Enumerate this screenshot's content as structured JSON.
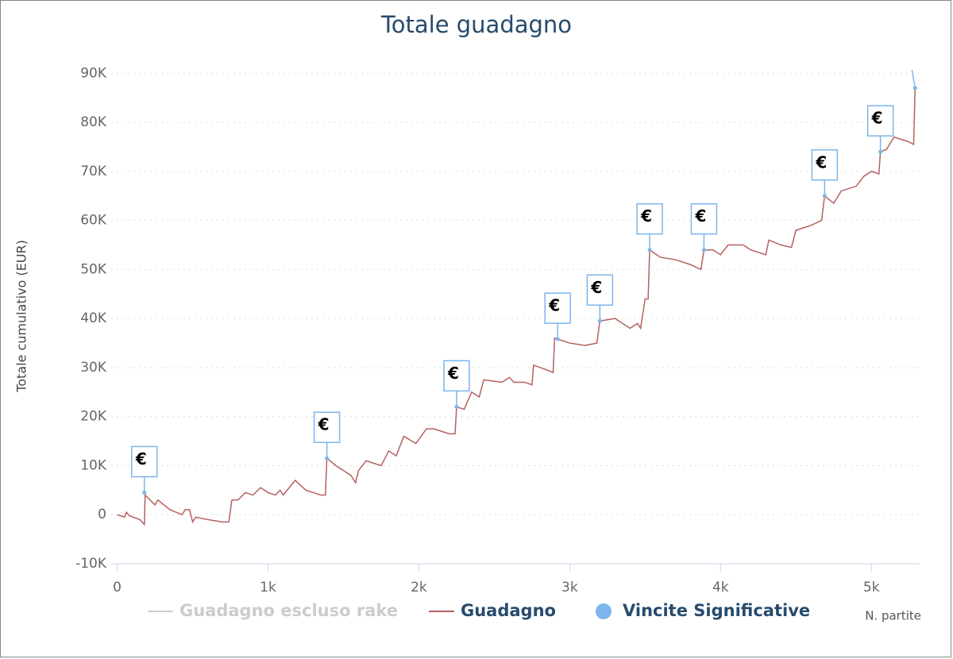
{
  "chart_data": {
    "type": "line",
    "title": "Totale guadagno",
    "y_label": "Totale cumulativo (EUR)",
    "x_label": "N. partite",
    "xlim": [
      -40,
      5320
    ],
    "ylim": [
      -10000,
      92000
    ],
    "xticks": [
      0,
      {
        "value": 1000,
        "label": "1k"
      },
      {
        "value": 2000,
        "label": "2k"
      },
      {
        "value": 3000,
        "label": "3k"
      },
      {
        "value": 4000,
        "label": "4k"
      },
      {
        "value": 5000,
        "label": "5k"
      }
    ],
    "yticks": [
      {
        "value": -10000,
        "label": "-10K"
      },
      0,
      {
        "value": 10000,
        "label": "10K"
      },
      {
        "value": 20000,
        "label": "20K"
      },
      {
        "value": 30000,
        "label": "30K"
      },
      {
        "value": 40000,
        "label": "40K"
      },
      {
        "value": 50000,
        "label": "50K"
      },
      {
        "value": 60000,
        "label": "60K"
      },
      {
        "value": 70000,
        "label": "70K"
      },
      {
        "value": 80000,
        "label": "80K"
      },
      {
        "value": 90000,
        "label": "90K"
      }
    ],
    "grid": true,
    "flag_text": "€",
    "series": [
      {
        "name": "Guadagno escluso rake",
        "color": "#cccccc",
        "hidden": true
      },
      {
        "name": "Guadagno",
        "color": "#b5615f",
        "x": [
          0,
          50,
          60,
          80,
          150,
          180,
          185,
          250,
          270,
          350,
          430,
          450,
          480,
          500,
          520,
          600,
          700,
          740,
          760,
          800,
          850,
          900,
          950,
          1000,
          1050,
          1080,
          1100,
          1180,
          1250,
          1350,
          1380,
          1390,
          1450,
          1500,
          1550,
          1580,
          1600,
          1650,
          1750,
          1800,
          1850,
          1900,
          1980,
          2050,
          2100,
          2200,
          2240,
          2250,
          2300,
          2350,
          2400,
          2430,
          2550,
          2600,
          2630,
          2700,
          2750,
          2760,
          2850,
          2890,
          2900,
          3000,
          3100,
          3180,
          3200,
          3300,
          3350,
          3400,
          3450,
          3470,
          3500,
          3520,
          3530,
          3600,
          3700,
          3800,
          3870,
          3890,
          3950,
          4000,
          4050,
          4150,
          4200,
          4300,
          4320,
          4400,
          4470,
          4500,
          4600,
          4670,
          4690,
          4750,
          4800,
          4900,
          4950,
          5000,
          5050,
          5060,
          5100,
          5150,
          5250,
          5280,
          5290
        ],
        "values": [
          0,
          -500,
          500,
          -200,
          -1000,
          -2000,
          4000,
          2000,
          3000,
          1000,
          0,
          1000,
          1000,
          -1500,
          -500,
          -1000,
          -1500,
          -1500,
          3000,
          3000,
          4500,
          4000,
          5500,
          4500,
          4000,
          5000,
          4000,
          7000,
          5000,
          4000,
          4000,
          11500,
          10000,
          9000,
          8000,
          6500,
          9000,
          11000,
          10000,
          13000,
          12000,
          16000,
          14500,
          17500,
          17500,
          16500,
          16500,
          22000,
          21500,
          25000,
          24000,
          27500,
          27000,
          28000,
          27000,
          27000,
          26500,
          30500,
          29500,
          29000,
          36000,
          35000,
          34500,
          35000,
          39500,
          40000,
          39000,
          38000,
          39000,
          38000,
          44000,
          44000,
          54000,
          52500,
          52000,
          51000,
          50000,
          54000,
          54000,
          53000,
          55000,
          55000,
          54000,
          53000,
          56000,
          55000,
          54500,
          58000,
          59000,
          60000,
          65000,
          63500,
          66000,
          67000,
          69000,
          70000,
          69500,
          74000,
          74500,
          77000,
          76000,
          75500,
          87000
        ]
      },
      {
        "name": "Vincite Significative",
        "color": "#7cb5ec",
        "x": [
          180,
          1390,
          2250,
          2920,
          3200,
          3530,
          3890,
          4690,
          5060,
          5290
        ],
        "values": [
          4500,
          11500,
          22000,
          35800,
          39500,
          54000,
          54000,
          65000,
          74000,
          87000
        ]
      }
    ]
  }
}
